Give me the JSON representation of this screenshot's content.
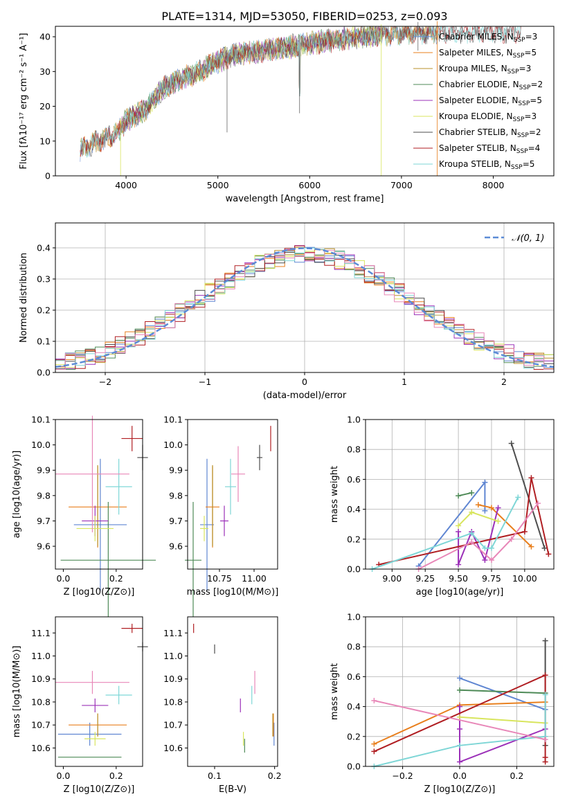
{
  "title": "PLATE=1314, MJD=53050, FIBERID=0253, z=0.093",
  "colors": {
    "Chabrier MILES": "#5f86d2",
    "Salpeter MILES": "#e87f1d",
    "Kroupa MILES": "#b8902a",
    "Chabrier ELODIE": "#4e8a57",
    "Salpeter ELODIE": "#9b30b8",
    "Kroupa ELODIE": "#d8e55d",
    "Chabrier STELIB": "#4d4d4d",
    "Salpeter STELIB": "#b01e22",
    "Kroupa STELIB": "#7ed6d6",
    "extra pink": "#e887b8",
    "normal": "#5b8bd6"
  },
  "chart_data": [
    {
      "id": "spectrum",
      "type": "line",
      "title": "PLATE=1314, MJD=53050, FIBERID=0253, z=0.093",
      "xlabel": "wavelength [Angstrom, rest frame]",
      "ylabel": "Flux [fλ10⁻¹⁷ erg cm⁻² s⁻¹ A⁻¹]",
      "xlim": [
        3230,
        8660
      ],
      "ylim": [
        0,
        43
      ],
      "xticks": [
        4000,
        5000,
        6000,
        7000,
        8000
      ],
      "yticks": [
        0,
        10,
        20,
        30,
        40
      ],
      "grid": false,
      "legend_position": "top-right",
      "continuum": [
        [
          3500,
          7.5
        ],
        [
          3700,
          10
        ],
        [
          3900,
          12
        ],
        [
          4000,
          16
        ],
        [
          4200,
          19
        ],
        [
          4400,
          25
        ],
        [
          4600,
          28
        ],
        [
          4800,
          30
        ],
        [
          5000,
          33
        ],
        [
          5200,
          35
        ],
        [
          5500,
          36
        ],
        [
          6000,
          38
        ],
        [
          6500,
          40
        ],
        [
          7000,
          41
        ],
        [
          7400,
          41.5
        ]
      ],
      "spikes": [
        [
          5100,
          12.5
        ],
        [
          5890,
          18
        ],
        [
          3940,
          0
        ],
        [
          6780,
          0
        ],
        [
          7390,
          0
        ],
        [
          7180,
          36
        ]
      ],
      "series": [
        {
          "name": "Chabrier MILES, N_SSP=3",
          "label_main": "Chabrier MILES, N",
          "sub": "SSP",
          "label_end": "=3"
        },
        {
          "name": "Salpeter MILES, N_SSP=5",
          "label_main": "Salpeter MILES, N",
          "sub": "SSP",
          "label_end": "=5"
        },
        {
          "name": "Kroupa MILES, N_SSP=3",
          "label_main": "Kroupa MILES, N",
          "sub": "SSP",
          "label_end": "=3"
        },
        {
          "name": "Chabrier ELODIE, N_SSP=2",
          "label_main": "Chabrier ELODIE, N",
          "sub": "SSP",
          "label_end": "=2"
        },
        {
          "name": "Salpeter ELODIE, N_SSP=5",
          "label_main": "Salpeter ELODIE, N",
          "sub": "SSP",
          "label_end": "=5"
        },
        {
          "name": "Kroupa ELODIE, N_SSP=3",
          "label_main": "Kroupa ELODIE, N",
          "sub": "SSP",
          "label_end": "=3"
        },
        {
          "name": "Chabrier STELIB, N_SSP=2",
          "label_main": "Chabrier STELIB, N",
          "sub": "SSP",
          "label_end": "=2"
        },
        {
          "name": "Salpeter STELIB, N_SSP=4",
          "label_main": "Salpeter STELIB, N",
          "sub": "SSP",
          "label_end": "=4"
        },
        {
          "name": "Kroupa STELIB, N_SSP=5",
          "label_main": "Kroupa STELIB, N",
          "sub": "SSP",
          "label_end": "=5"
        }
      ]
    },
    {
      "id": "residuals",
      "type": "line",
      "xlabel": "(data-model)/error",
      "ylabel": "Normed distribution",
      "xlim": [
        -2.5,
        2.5
      ],
      "ylim": [
        0,
        0.48
      ],
      "xticks": [
        -2,
        -1,
        0,
        1,
        2
      ],
      "yticks": [
        0.0,
        0.1,
        0.2,
        0.3,
        0.4
      ],
      "grid": true,
      "legend": "𝒩(0, 1)",
      "legend_position": "top-right",
      "bin_width": 0.1,
      "histogram_series_count": 9
    },
    {
      "id": "age-vs-Z",
      "type": "scatter",
      "xlabel": "Z [log10(Z/Z⊙)]",
      "ylabel": "age [log10(age/yr)]",
      "xlim": [
        -0.03,
        0.3
      ],
      "ylim": [
        9.51,
        10.1
      ],
      "xticks": [
        0.0,
        0.2
      ],
      "yticks": [
        9.6,
        9.7,
        9.8,
        9.9,
        10.0,
        10.1
      ],
      "points": [
        {
          "series": "Chabrier MILES",
          "x": 0.14,
          "xerr": 0.1,
          "y": 9.685,
          "yerr": 0.26
        },
        {
          "series": "Salpeter MILES",
          "x": 0.13,
          "xerr": 0.11,
          "y": 9.755,
          "yerr": 0.16
        },
        {
          "series": "Kroupa MILES",
          "x": 0.13,
          "xerr": 0.0,
          "y": 9.76,
          "yerr": 0.16
        },
        {
          "series": "Chabrier ELODIE",
          "x": 0.17,
          "xerr": 0.18,
          "y": 9.545,
          "yerr": 0.23
        },
        {
          "series": "Salpeter ELODIE",
          "x": 0.12,
          "xerr": 0.05,
          "y": 9.7,
          "yerr": 0.06
        },
        {
          "series": "Kroupa ELODIE",
          "x": 0.12,
          "xerr": 0.07,
          "y": 9.67,
          "yerr": 0.05
        },
        {
          "series": "Chabrier STELIB",
          "x": 0.3,
          "xerr": 0.02,
          "y": 9.95,
          "yerr": 0.05
        },
        {
          "series": "Salpeter STELIB",
          "x": 0.26,
          "xerr": 0.04,
          "y": 10.025,
          "yerr": 0.05
        },
        {
          "series": "Kroupa STELIB",
          "x": 0.21,
          "xerr": 0.05,
          "y": 9.835,
          "yerr": 0.11
        },
        {
          "series": "extra pink",
          "x": 0.11,
          "xerr": 0.14,
          "y": 9.885,
          "yerr": 0.23
        }
      ]
    },
    {
      "id": "age-vs-mass",
      "type": "scatter",
      "xlabel": "mass [log10(M/M⊙)]",
      "ylabel": "",
      "xlim": [
        10.52,
        11.17
      ],
      "ylim": [
        9.51,
        10.1
      ],
      "xticks": [
        10.75,
        11.0
      ],
      "yticks": [
        9.6,
        9.7,
        9.8,
        9.9,
        10.0,
        10.1
      ],
      "points": [
        {
          "series": "Chabrier MILES",
          "x": 10.66,
          "xerr": 0.05,
          "y": 9.685,
          "yerr": 0.26
        },
        {
          "series": "Salpeter MILES",
          "x": 10.7,
          "xerr": 0.05,
          "y": 9.755,
          "yerr": 0.16
        },
        {
          "series": "Kroupa MILES",
          "x": 10.7,
          "xerr": 0.0,
          "y": 9.76,
          "yerr": 0.16
        },
        {
          "series": "Chabrier ELODIE",
          "x": 10.56,
          "xerr": 0.06,
          "y": 9.545,
          "yerr": 0.23
        },
        {
          "series": "Salpeter ELODIE",
          "x": 10.785,
          "xerr": 0.03,
          "y": 9.7,
          "yerr": 0.06
        },
        {
          "series": "Kroupa ELODIE",
          "x": 10.64,
          "xerr": 0.03,
          "y": 9.67,
          "yerr": 0.05
        },
        {
          "series": "Chabrier STELIB",
          "x": 11.04,
          "xerr": 0.02,
          "y": 9.95,
          "yerr": 0.05
        },
        {
          "series": "Salpeter STELIB",
          "x": 11.12,
          "xerr": 0.0,
          "y": 10.025,
          "yerr": 0.05
        },
        {
          "series": "Kroupa STELIB",
          "x": 10.83,
          "xerr": 0.04,
          "y": 9.835,
          "yerr": 0.11
        },
        {
          "series": "extra pink",
          "x": 10.885,
          "xerr": 0.05,
          "y": 9.885,
          "yerr": 0.11
        }
      ]
    },
    {
      "id": "weights-vs-age",
      "type": "line",
      "xlabel": "age [log10(age/yr)]",
      "ylabel": "mass weight",
      "xlim": [
        8.8,
        10.22
      ],
      "ylim": [
        0,
        1.0
      ],
      "xticks": [
        9.0,
        9.25,
        9.5,
        9.75,
        10.0
      ],
      "yticks": [
        0.0,
        0.2,
        0.4,
        0.6,
        0.8,
        1.0
      ],
      "grid": true,
      "series": [
        {
          "name": "Chabrier MILES",
          "points": [
            [
              9.2,
              0.02
            ],
            [
              9.7,
              0.58
            ],
            [
              9.7,
              0.39
            ]
          ]
        },
        {
          "name": "Salpeter MILES",
          "points": [
            [
              9.65,
              0.43
            ],
            [
              9.75,
              0.41
            ],
            [
              10.05,
              0.15
            ]
          ]
        },
        {
          "name": "Chabrier ELODIE",
          "points": [
            [
              9.5,
              0.49
            ],
            [
              9.6,
              0.51
            ]
          ]
        },
        {
          "name": "Salpeter ELODIE",
          "points": [
            [
              9.5,
              0.25
            ],
            [
              9.5,
              0.03
            ],
            [
              9.6,
              0.25
            ],
            [
              9.7,
              0.06
            ],
            [
              9.8,
              0.41
            ]
          ]
        },
        {
          "name": "Kroupa ELODIE",
          "points": [
            [
              9.5,
              0.29
            ],
            [
              9.6,
              0.38
            ],
            [
              9.8,
              0.32
            ]
          ]
        },
        {
          "name": "Chabrier STELIB",
          "points": [
            [
              9.9,
              0.84
            ],
            [
              10.15,
              0.14
            ]
          ]
        },
        {
          "name": "Salpeter STELIB",
          "points": [
            [
              8.9,
              0.03
            ],
            [
              10.0,
              0.25
            ],
            [
              10.05,
              0.61
            ],
            [
              10.18,
              0.1
            ]
          ]
        },
        {
          "name": "Kroupa STELIB",
          "points": [
            [
              8.85,
              0.0
            ],
            [
              9.6,
              0.24
            ],
            [
              9.7,
              0.14
            ],
            [
              9.75,
              0.14
            ],
            [
              9.95,
              0.48
            ]
          ]
        },
        {
          "name": "extra pink",
          "points": [
            [
              9.2,
              0.0
            ],
            [
              9.6,
              0.18
            ],
            [
              9.75,
              0.06
            ],
            [
              9.9,
              0.2
            ],
            [
              10.1,
              0.44
            ]
          ]
        }
      ]
    },
    {
      "id": "mass-vs-Z",
      "type": "scatter",
      "xlabel": "Z [log10(Z/Z⊙)]",
      "ylabel": "mass [log10(M/M⊙)]",
      "xlim": [
        -0.03,
        0.3
      ],
      "ylim": [
        10.52,
        11.17
      ],
      "xticks": [
        0.0,
        0.2
      ],
      "yticks": [
        10.6,
        10.7,
        10.8,
        10.9,
        11.0,
        11.1
      ],
      "points": [
        {
          "series": "Chabrier MILES",
          "x": 0.1,
          "xerr": 0.12,
          "y": 10.66,
          "yerr": 0.05
        },
        {
          "series": "Salpeter MILES",
          "x": 0.13,
          "xerr": 0.11,
          "y": 10.7,
          "yerr": 0.05
        },
        {
          "series": "Kroupa MILES",
          "x": 0.13,
          "xerr": 0.0,
          "y": 10.7,
          "yerr": 0.05
        },
        {
          "series": "Chabrier ELODIE",
          "x": 0.1,
          "xerr": 0.12,
          "y": 10.56,
          "yerr": 0.0
        },
        {
          "series": "Salpeter ELODIE",
          "x": 0.12,
          "xerr": 0.05,
          "y": 10.785,
          "yerr": 0.03
        },
        {
          "series": "Kroupa ELODIE",
          "x": 0.12,
          "xerr": 0.04,
          "y": 10.64,
          "yerr": 0.03
        },
        {
          "series": "Chabrier STELIB",
          "x": 0.3,
          "xerr": 0.02,
          "y": 11.04,
          "yerr": 0.02
        },
        {
          "series": "Salpeter STELIB",
          "x": 0.26,
          "xerr": 0.04,
          "y": 11.12,
          "yerr": 0.02
        },
        {
          "series": "Kroupa STELIB",
          "x": 0.21,
          "xerr": 0.05,
          "y": 10.83,
          "yerr": 0.04
        },
        {
          "series": "extra pink",
          "x": 0.11,
          "xerr": 0.14,
          "y": 10.885,
          "yerr": 0.05
        }
      ]
    },
    {
      "id": "mass-vs-EBV",
      "type": "scatter",
      "xlabel": "E(B-V)",
      "ylabel": "",
      "xlim": [
        0.055,
        0.205
      ],
      "ylim": [
        10.52,
        11.17
      ],
      "xticks": [
        0.1,
        0.2
      ],
      "yticks": [
        10.6,
        10.7,
        10.8,
        10.9,
        11.0,
        11.1
      ],
      "points": [
        {
          "series": "Chabrier MILES",
          "x": 0.199,
          "y": 10.66,
          "yerr": 0.05
        },
        {
          "series": "Salpeter MILES",
          "x": 0.198,
          "y": 10.7,
          "yerr": 0.05
        },
        {
          "series": "Kroupa MILES",
          "x": 0.197,
          "y": 10.7,
          "yerr": 0.05
        },
        {
          "series": "Chabrier ELODIE",
          "x": 0.15,
          "y": 10.61,
          "yerr": 0.03
        },
        {
          "series": "Salpeter ELODIE",
          "x": 0.143,
          "y": 10.785,
          "yerr": 0.03
        },
        {
          "series": "Kroupa ELODIE",
          "x": 0.148,
          "y": 10.64,
          "yerr": 0.03
        },
        {
          "series": "Chabrier STELIB",
          "x": 0.1,
          "y": 11.03,
          "yerr": 0.02
        },
        {
          "series": "Salpeter STELIB",
          "x": 0.065,
          "y": 11.12,
          "yerr": 0.02
        },
        {
          "series": "Kroupa STELIB",
          "x": 0.162,
          "y": 10.83,
          "yerr": 0.04
        },
        {
          "series": "extra pink",
          "x": 0.167,
          "y": 10.885,
          "yerr": 0.05
        }
      ]
    },
    {
      "id": "weights-vs-Z",
      "type": "line",
      "xlabel": "Z [log10(Z/Z⊙)]",
      "ylabel": "mass weight",
      "xlim": [
        -0.33,
        0.33
      ],
      "ylim": [
        0,
        1.0
      ],
      "xticks": [
        -0.2,
        0.0,
        0.2
      ],
      "yticks": [
        0.0,
        0.2,
        0.4,
        0.6,
        0.8,
        1.0
      ],
      "grid": true,
      "series": [
        {
          "name": "Chabrier MILES",
          "points": [
            [
              0.0,
              0.59
            ],
            [
              0.3,
              0.38
            ]
          ]
        },
        {
          "name": "Salpeter MILES",
          "points": [
            [
              -0.3,
              0.15
            ],
            [
              0.0,
              0.41
            ],
            [
              0.3,
              0.43
            ]
          ]
        },
        {
          "name": "Chabrier ELODIE",
          "points": [
            [
              0.0,
              0.51
            ],
            [
              0.3,
              0.49
            ]
          ]
        },
        {
          "name": "Salpeter ELODIE",
          "points": [
            [
              0.0,
              0.4
            ],
            [
              0.0,
              0.25
            ],
            [
              0.0,
              0.03
            ],
            [
              0.3,
              0.25
            ]
          ]
        },
        {
          "name": "Kroupa ELODIE",
          "points": [
            [
              0.0,
              0.33
            ],
            [
              0.3,
              0.29
            ]
          ]
        },
        {
          "name": "Chabrier STELIB",
          "points": [
            [
              0.3,
              0.84
            ],
            [
              0.3,
              0.14
            ]
          ]
        },
        {
          "name": "Salpeter STELIB",
          "points": [
            [
              -0.3,
              0.1
            ],
            [
              0.3,
              0.61
            ],
            [
              0.3,
              0.06
            ],
            [
              0.3,
              0.03
            ]
          ]
        },
        {
          "name": "Kroupa STELIB",
          "points": [
            [
              -0.3,
              0.0
            ],
            [
              0.0,
              0.14
            ],
            [
              0.3,
              0.2
            ],
            [
              0.3,
              0.48
            ]
          ]
        },
        {
          "name": "extra pink",
          "points": [
            [
              -0.3,
              0.44
            ],
            [
              0.3,
              0.18
            ]
          ]
        }
      ]
    }
  ]
}
